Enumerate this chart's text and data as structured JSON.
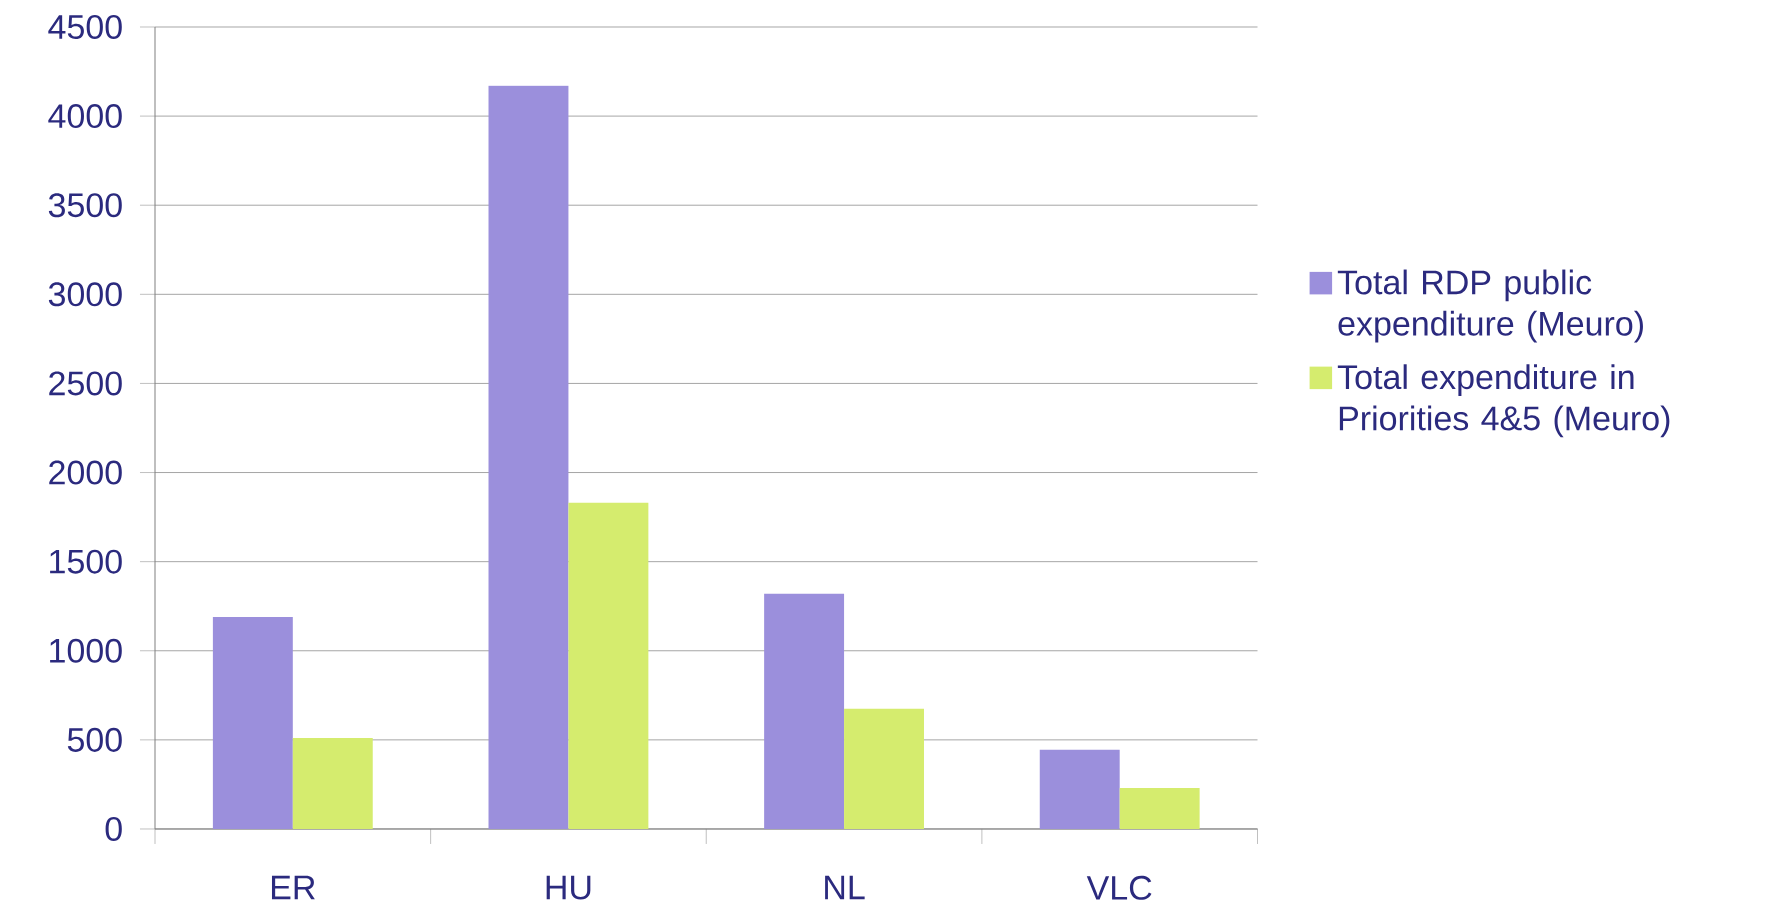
{
  "chart_data": {
    "type": "bar",
    "categories": [
      "ER",
      "HU",
      "NL",
      "VLC"
    ],
    "series": [
      {
        "name": "Total RDP public expenditure (Meuro)",
        "color": "#9b8fdc",
        "values": [
          1190,
          4170,
          1320,
          445
        ]
      },
      {
        "name": "Total expenditure in Priorities 4&5 (Meuro)",
        "color": "#d5ec6e",
        "values": [
          510,
          1830,
          675,
          230
        ]
      }
    ],
    "ylim": [
      0,
      4500
    ],
    "yticks": [
      0,
      500,
      1000,
      1500,
      2000,
      2500,
      3000,
      3500,
      4000,
      4500
    ],
    "grid": "y",
    "legend": "right"
  }
}
